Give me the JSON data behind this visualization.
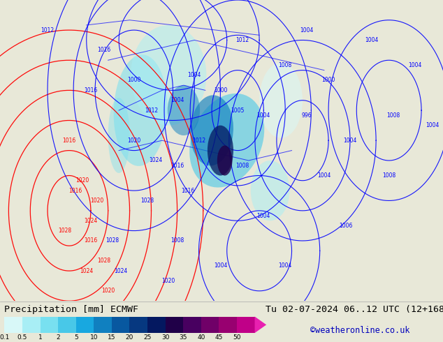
{
  "title_left": "Precipitation [mm] ECMWF",
  "title_right": "Tu 02-07-2024 06..12 UTC (12+168)",
  "credit": "©weatheronline.co.uk",
  "colorbar_labels": [
    "0.1",
    "0.5",
    "1",
    "2",
    "5",
    "10",
    "15",
    "20",
    "25",
    "30",
    "35",
    "40",
    "45",
    "50"
  ],
  "colorbar_colors": [
    "#d8f8f8",
    "#a8eef5",
    "#78e0f0",
    "#48c8e8",
    "#18a8e0",
    "#1080c0",
    "#0858a0",
    "#063880",
    "#041860",
    "#200048",
    "#480060",
    "#700068",
    "#980070",
    "#c00088",
    "#e820b0"
  ],
  "bg_color": "#e8e8d8",
  "map_bg": "#c8d8b8",
  "text_color": "#000000",
  "credit_color": "#0000bb",
  "title_fontsize": 9.5,
  "credit_fontsize": 8.5,
  "fig_width": 6.34,
  "fig_height": 4.9,
  "dpi": 100,
  "pressure_labels_blue": [
    [
      -38,
      74,
      "1012"
    ],
    [
      -18,
      62,
      "1016"
    ],
    [
      -12,
      70,
      "1016"
    ],
    [
      2,
      52,
      "1020"
    ],
    [
      12,
      48,
      "1024"
    ],
    [
      8,
      40,
      "1028"
    ],
    [
      -8,
      32,
      "1028"
    ],
    [
      -4,
      26,
      "1024"
    ],
    [
      18,
      24,
      "1020"
    ],
    [
      2,
      64,
      "1000"
    ],
    [
      22,
      60,
      "1004"
    ],
    [
      42,
      62,
      "1000"
    ],
    [
      62,
      57,
      "1004"
    ],
    [
      72,
      67,
      "1008"
    ],
    [
      82,
      74,
      "1004"
    ],
    [
      52,
      47,
      "1008"
    ],
    [
      62,
      37,
      "1004"
    ],
    [
      72,
      27,
      "1004"
    ],
    [
      32,
      52,
      "1012"
    ],
    [
      22,
      47,
      "1016"
    ],
    [
      27,
      42,
      "1016"
    ],
    [
      52,
      72,
      "1012"
    ],
    [
      82,
      57,
      "996"
    ],
    [
      92,
      64,
      "1000"
    ],
    [
      102,
      52,
      "1004"
    ],
    [
      112,
      72,
      "1004"
    ],
    [
      122,
      57,
      "1008"
    ],
    [
      132,
      67,
      "1004"
    ],
    [
      22,
      32,
      "1008"
    ],
    [
      42,
      27,
      "1004"
    ],
    [
      10,
      58,
      "1012"
    ],
    [
      30,
      65,
      "1004"
    ],
    [
      50,
      58,
      "1005"
    ],
    [
      90,
      45,
      "1004"
    ],
    [
      100,
      35,
      "1006"
    ],
    [
      120,
      45,
      "1008"
    ],
    [
      140,
      55,
      "1004"
    ]
  ],
  "pressure_labels_red": [
    [
      -28,
      52,
      "1016"
    ],
    [
      -22,
      44,
      "1020"
    ],
    [
      -18,
      36,
      "1024"
    ],
    [
      -12,
      28,
      "1028"
    ],
    [
      -30,
      34,
      "1028"
    ],
    [
      -20,
      26,
      "1024"
    ],
    [
      -10,
      22,
      "1020"
    ],
    [
      -25,
      42,
      "1016"
    ],
    [
      -18,
      32,
      "1016"
    ],
    [
      -15,
      40,
      "1020"
    ]
  ]
}
